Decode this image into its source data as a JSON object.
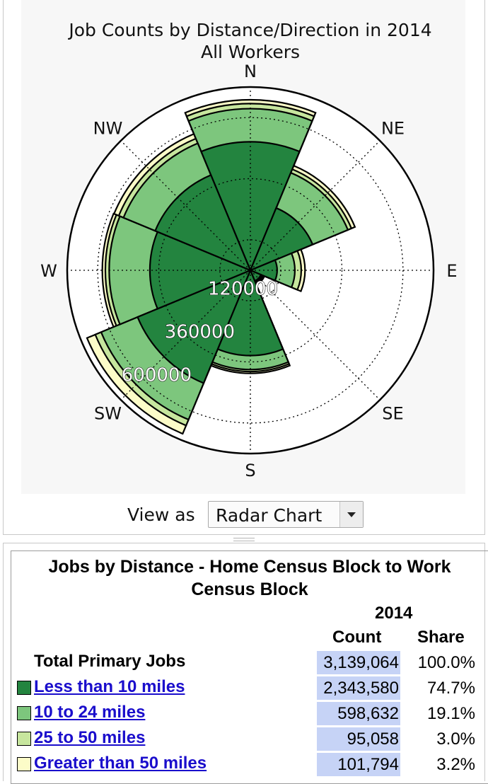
{
  "chart_data": {
    "type": "radar",
    "title": "Job Counts by Distance/Direction in 2014",
    "subtitle": "All Workers",
    "directions": [
      "N",
      "NE",
      "E",
      "SE",
      "S",
      "SW",
      "W",
      "NW"
    ],
    "radial_ticks": [
      "120000",
      "360000",
      "600000"
    ],
    "radial_tick_values": [
      120000,
      360000,
      600000
    ],
    "rmax": 720000,
    "grid": true,
    "series": [
      {
        "name": "Less than 10 miles",
        "color": "#23843f",
        "values": [
          505000,
          265000,
          105000,
          45000,
          335000,
          480000,
          395000,
          405000
        ]
      },
      {
        "name": "10 to 24 miles",
        "color": "#7dc67d",
        "values": [
          635000,
          415000,
          175000,
          50000,
          390000,
          635000,
          555000,
          540000
        ]
      },
      {
        "name": "25 to 50 miles",
        "color": "#c7e69e",
        "values": [
          655000,
          430000,
          200000,
          55000,
          398000,
          660000,
          570000,
          560000
        ]
      },
      {
        "name": "Greater than 50 miles",
        "color": "#fcfcc8",
        "values": [
          670000,
          445000,
          215000,
          60000,
          405000,
          695000,
          582000,
          580000
        ]
      }
    ]
  },
  "view_control": {
    "label": "View as",
    "selected": "Radar Chart"
  },
  "table": {
    "title_line1": "Jobs by Distance - Home Census Block to Work",
    "title_line2": "Census Block",
    "year": "2014",
    "col_count": "Count",
    "col_share": "Share",
    "total": {
      "label": "Total Primary Jobs",
      "count": "3,139,064",
      "share": "100.0%"
    },
    "rows": [
      {
        "label": "Less than 10 miles",
        "count": "2,343,580",
        "share": "74.7%",
        "color": "#23843f"
      },
      {
        "label": "10 to 24 miles",
        "count": "598,632",
        "share": "19.1%",
        "color": "#7dc67d"
      },
      {
        "label": "25 to 50 miles",
        "count": "95,058",
        "share": "3.0%",
        "color": "#c7e69e"
      },
      {
        "label": "Greater than 50 miles",
        "count": "101,794",
        "share": "3.2%",
        "color": "#fcfcc8"
      }
    ]
  }
}
